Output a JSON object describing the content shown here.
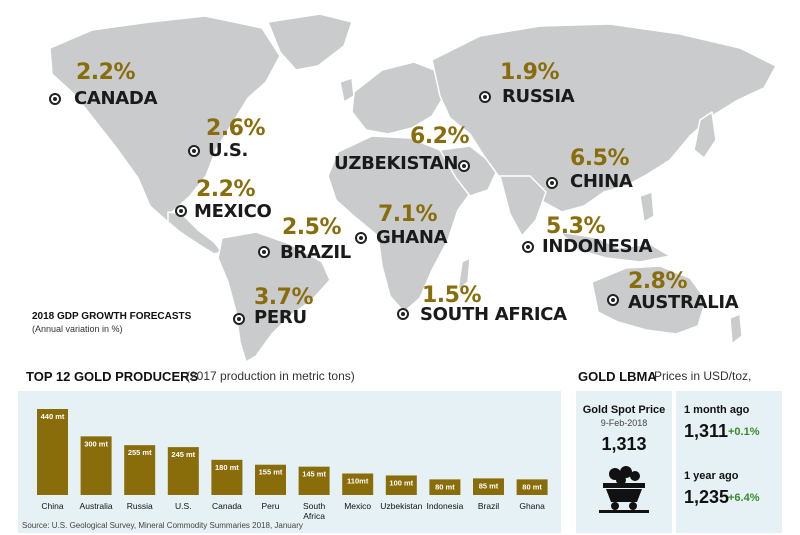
{
  "map": {
    "title": "2018 GDP GROWTH FORECASTS",
    "subtitle": "(Annual variation in %)",
    "countries": [
      {
        "name": "CANADA",
        "value": "2.2%"
      },
      {
        "name": "U.S.",
        "value": "2.6%"
      },
      {
        "name": "MEXICO",
        "value": "2.2%"
      },
      {
        "name": "BRAZIL",
        "value": "2.5%"
      },
      {
        "name": "PERU",
        "value": "3.7%"
      },
      {
        "name": "RUSSIA",
        "value": "1.9%"
      },
      {
        "name": "UZBEKISTAN",
        "value": "6.2%"
      },
      {
        "name": "CHINA",
        "value": "6.5%"
      },
      {
        "name": "GHANA",
        "value": "7.1%"
      },
      {
        "name": "INDONESIA",
        "value": "5.3%"
      },
      {
        "name": "SOUTH AFRICA",
        "value": "1.5%"
      },
      {
        "name": "AUSTRALIA",
        "value": "2.8%"
      }
    ]
  },
  "chart_data": {
    "type": "bar",
    "title": "TOP 12 GOLD PRODUCERS",
    "subtitle": "(2017 production in metric tons)",
    "categories": [
      "China",
      "Australia",
      "Russia",
      "U.S.",
      "Canada",
      "Peru",
      "South Africa",
      "Mexico",
      "Uzbekistan",
      "Indonesia",
      "Brazil",
      "Ghana"
    ],
    "values": [
      440,
      300,
      255,
      245,
      180,
      155,
      145,
      110,
      100,
      80,
      85,
      80
    ],
    "labels": [
      "440 mt",
      "300 mt",
      "255 mt",
      "245 mt",
      "180 mt",
      "155 mt",
      "145 mt",
      "110mt",
      "100 mt",
      "80 mt",
      "85 mt",
      "80 mt"
    ],
    "ylim": [
      0,
      440
    ],
    "source": "Source: U.S. Geological Survey, Mineral Commodity Summaries 2018, January",
    "bar_color": "#8a6d0b"
  },
  "gold": {
    "title": "GOLD LBMA",
    "subtitle": "Prices in USD/toz,",
    "spot_label": "Gold Spot Price",
    "spot_date": "9-Feb-2018",
    "spot_value": "1,313",
    "month_label": "1 month ago",
    "month_value": "1,311",
    "month_change": "+0.1%",
    "year_label": "1 year ago",
    "year_value": "1,235",
    "year_change": "+6.4%",
    "icon": "mine-cart-icon"
  }
}
